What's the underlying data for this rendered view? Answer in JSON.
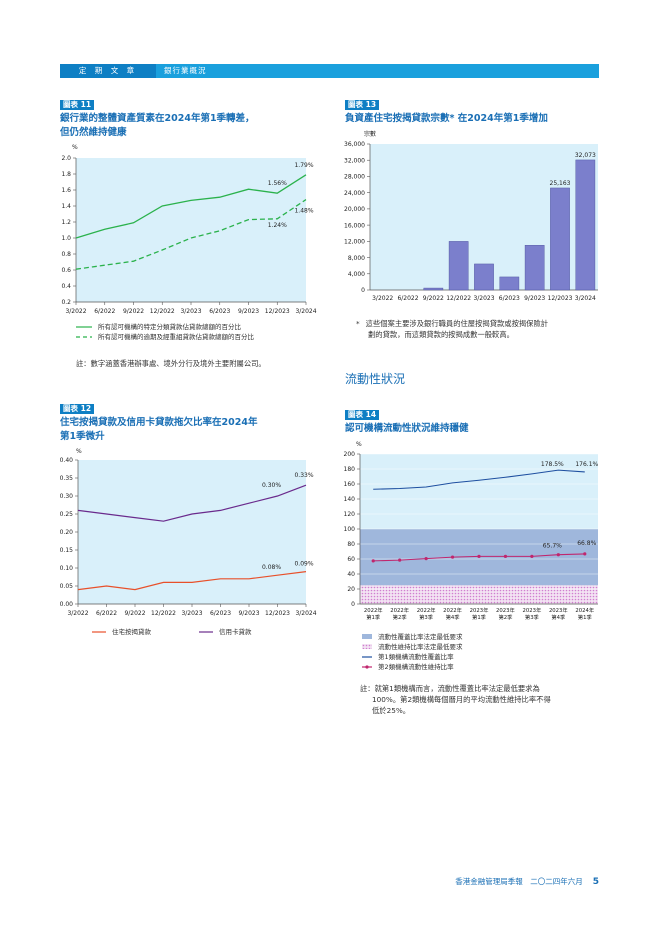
{
  "header": {
    "section": "定 期 文 章",
    "subsection": "銀行業概況"
  },
  "chart11": {
    "tag": "圖表 11",
    "title_line1": "銀行業的整體資產質素在2024年第1季轉差，",
    "title_line2": "但仍然維持健康",
    "unit": "%",
    "legend1": "所有認可機構的特定分類貸款佔貸款總額的百分比",
    "legend2": "所有認可機構的逾期及經重組貸款佔貸款總額的百分比",
    "note": "註：數字涵蓋香港辦事處、境外分行及境外主要附屬公司。"
  },
  "chart12": {
    "tag": "圖表 12",
    "title_line1": "住宅按揭貸款及信用卡貸款拖欠比率在2024年",
    "title_line2": "第1季微升",
    "unit": "%",
    "legend1": "住宅按揭貸款",
    "legend2": "信用卡貸款"
  },
  "chart13": {
    "tag": "圖表 13",
    "title": "負資產住宅按揭貸款宗數* 在2024年第1季增加",
    "unit": "宗數",
    "note_mark": "*",
    "note_line1": "這些個案主要涉及銀行職員的住屋按揭貸款或按揭保險計",
    "note_line2": "劃的貸款，而這類貸款的按揭成數一般較高。"
  },
  "section_heading": "流動性狀況",
  "chart14": {
    "tag": "圖表 14",
    "title": "認可機構流動性狀況維持穩健",
    "unit": "%",
    "legend1": "流動性覆蓋比率法定最低要求",
    "legend2": "流動性維持比率法定最低要求",
    "legend3": "第1類機構流動性覆蓋比率",
    "legend4": "第2類機構流動性維持比率",
    "note_line1": "註：就第1類機構而言，流動性覆蓋比率法定最低要求為",
    "note_line2": "100%。第2類機構每個曆月的平均流動性維持比率不得",
    "note_line3": "低於25%。"
  },
  "footer": {
    "text": "香港金融管理局季報　二〇二四年六月",
    "page": "5"
  },
  "chart_data": [
    {
      "id": "chart11",
      "type": "line",
      "categories": [
        "3/2022",
        "6/2022",
        "9/2022",
        "12/2022",
        "3/2023",
        "6/2023",
        "9/2023",
        "12/2023",
        "3/2024"
      ],
      "series": [
        {
          "name": "所有認可機構的特定分類貸款佔貸款總額的百分比",
          "values": [
            1.0,
            1.11,
            1.19,
            1.4,
            1.47,
            1.51,
            1.61,
            1.56,
            1.79
          ]
        },
        {
          "name": "所有認可機構的逾期及經重組貸款佔貸款總額的百分比",
          "values": [
            0.61,
            0.66,
            0.71,
            0.85,
            1.0,
            1.09,
            1.23,
            1.24,
            1.48
          ]
        }
      ],
      "labels": [
        "1.79%",
        "1.56%",
        "1.48%",
        "1.24%"
      ],
      "ylim": [
        0.2,
        2.0
      ],
      "yticks": [
        "2.0",
        "1.8",
        "1.6",
        "1.4",
        "1.2",
        "1.0",
        "0.8",
        "0.6",
        "0.4",
        "0.2"
      ],
      "colors": [
        "#2bb24c",
        "#2bb24c"
      ]
    },
    {
      "id": "chart12",
      "type": "line",
      "categories": [
        "3/2022",
        "6/2022",
        "9/2022",
        "12/2022",
        "3/2023",
        "6/2023",
        "9/2023",
        "12/2023",
        "3/2024"
      ],
      "series": [
        {
          "name": "住宅按揭貸款",
          "values": [
            0.04,
            0.05,
            0.04,
            0.06,
            0.06,
            0.07,
            0.07,
            0.08,
            0.09
          ]
        },
        {
          "name": "信用卡貸款",
          "values": [
            0.26,
            0.25,
            0.24,
            0.23,
            0.25,
            0.26,
            0.28,
            0.3,
            0.33
          ]
        }
      ],
      "labels": [
        "0.33%",
        "0.30%",
        "0.09%",
        "0.08%"
      ],
      "ylim": [
        0,
        0.4
      ],
      "yticks": [
        "0.40",
        "0.35",
        "0.30",
        "0.25",
        "0.20",
        "0.15",
        "0.10",
        "0.05",
        "0.00"
      ],
      "colors": [
        "#e8502a",
        "#6a2a8c"
      ]
    },
    {
      "id": "chart13",
      "type": "bar",
      "categories": [
        "3/2022",
        "6/2022",
        "9/2022",
        "12/2022",
        "3/2023",
        "6/2023",
        "9/2023",
        "12/2023",
        "3/2024"
      ],
      "values": [
        0,
        0,
        485,
        11987,
        6426,
        3224,
        11044,
        25163,
        32073
      ],
      "labels": [
        "25,163",
        "32,073"
      ],
      "ylim": [
        0,
        36000
      ],
      "yticks": [
        "36,000",
        "32,000",
        "28,000",
        "24,000",
        "20,000",
        "16,000",
        "12,000",
        "8,000",
        "4,000",
        "0"
      ],
      "colors": [
        "#7b7fcc"
      ]
    },
    {
      "id": "chart14",
      "type": "line",
      "categories": [
        "2022年 第1季",
        "2022年 第2季",
        "2022年 第3季",
        "2022年 第4季",
        "2023年 第1季",
        "2023年 第2季",
        "2023年 第3季",
        "2023年 第4季",
        "2024年 第1季"
      ],
      "series": [
        {
          "name": "第1類機構流動性覆蓋比率",
          "values": [
            153.0,
            154.0,
            156.0,
            161.5,
            165.0,
            169.0,
            173.5,
            178.5,
            176.1
          ]
        },
        {
          "name": "第2類機構流動性維持比率",
          "values": [
            57.5,
            58.5,
            60.5,
            62.5,
            63.5,
            63.5,
            63.5,
            65.7,
            66.8
          ]
        }
      ],
      "thresholds": [
        {
          "name": "流動性覆蓋比率法定最低要求",
          "value": 100
        },
        {
          "name": "流動性維持比率法定最低要求",
          "value": 25
        }
      ],
      "labels": [
        "178.5%",
        "176.1%",
        "65.7%",
        "66.8%"
      ],
      "ylim": [
        0,
        200
      ],
      "yticks": [
        "200",
        "180",
        "160",
        "140",
        "120",
        "100",
        "80",
        "60",
        "40",
        "20",
        "0"
      ],
      "colors": [
        "#1e4fa0",
        "#c0266e",
        "#9fb7dc",
        "#d8a6d9"
      ]
    }
  ]
}
